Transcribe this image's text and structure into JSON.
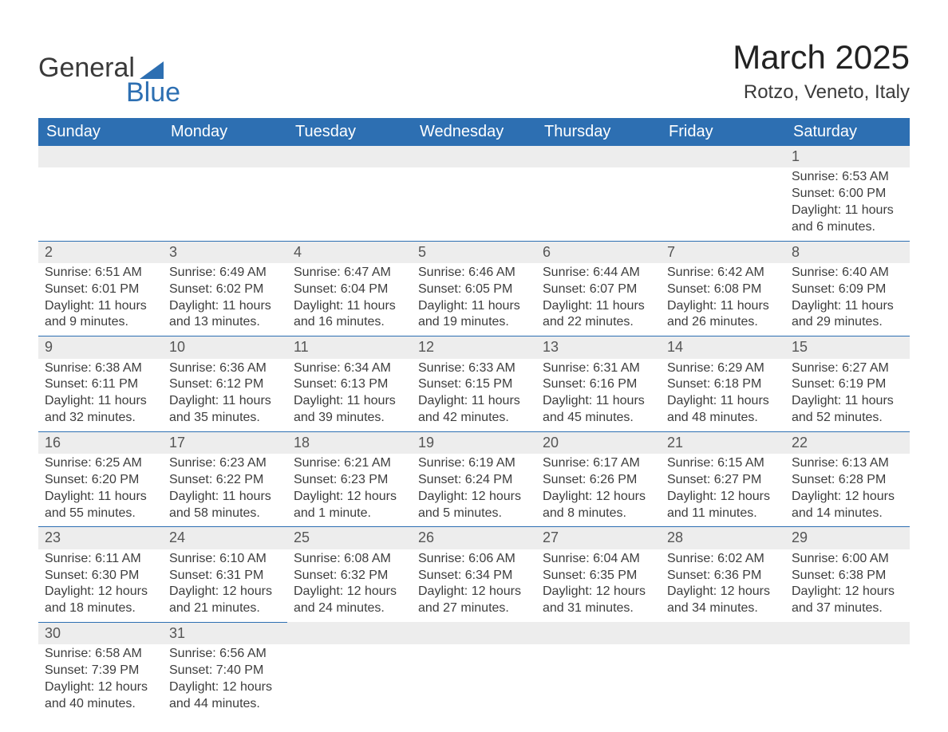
{
  "logo": {
    "line1": "General",
    "line2": "Blue",
    "brand_color": "#2d6fb2",
    "text_color": "#3a3a3a"
  },
  "title": "March 2025",
  "location": "Rotzo, Veneto, Italy",
  "colors": {
    "header_bg": "#2d6fb2",
    "header_text": "#ffffff",
    "daynum_bg": "#ededed",
    "body_text": "#3a3a3a",
    "background": "#ffffff"
  },
  "fonts": {
    "title_size": 42,
    "location_size": 24,
    "weekday_size": 20,
    "daynum_size": 18,
    "detail_size": 16
  },
  "weekdays": [
    "Sunday",
    "Monday",
    "Tuesday",
    "Wednesday",
    "Thursday",
    "Friday",
    "Saturday"
  ],
  "labels": {
    "sunrise": "Sunrise:",
    "sunset": "Sunset:",
    "daylight": "Daylight:"
  },
  "grid": {
    "leading_blanks": 6,
    "trailing_blanks": 5
  },
  "days": [
    {
      "n": 1,
      "sunrise": "6:53 AM",
      "sunset": "6:00 PM",
      "daylight": "11 hours and 6 minutes."
    },
    {
      "n": 2,
      "sunrise": "6:51 AM",
      "sunset": "6:01 PM",
      "daylight": "11 hours and 9 minutes."
    },
    {
      "n": 3,
      "sunrise": "6:49 AM",
      "sunset": "6:02 PM",
      "daylight": "11 hours and 13 minutes."
    },
    {
      "n": 4,
      "sunrise": "6:47 AM",
      "sunset": "6:04 PM",
      "daylight": "11 hours and 16 minutes."
    },
    {
      "n": 5,
      "sunrise": "6:46 AM",
      "sunset": "6:05 PM",
      "daylight": "11 hours and 19 minutes."
    },
    {
      "n": 6,
      "sunrise": "6:44 AM",
      "sunset": "6:07 PM",
      "daylight": "11 hours and 22 minutes."
    },
    {
      "n": 7,
      "sunrise": "6:42 AM",
      "sunset": "6:08 PM",
      "daylight": "11 hours and 26 minutes."
    },
    {
      "n": 8,
      "sunrise": "6:40 AM",
      "sunset": "6:09 PM",
      "daylight": "11 hours and 29 minutes."
    },
    {
      "n": 9,
      "sunrise": "6:38 AM",
      "sunset": "6:11 PM",
      "daylight": "11 hours and 32 minutes."
    },
    {
      "n": 10,
      "sunrise": "6:36 AM",
      "sunset": "6:12 PM",
      "daylight": "11 hours and 35 minutes."
    },
    {
      "n": 11,
      "sunrise": "6:34 AM",
      "sunset": "6:13 PM",
      "daylight": "11 hours and 39 minutes."
    },
    {
      "n": 12,
      "sunrise": "6:33 AM",
      "sunset": "6:15 PM",
      "daylight": "11 hours and 42 minutes."
    },
    {
      "n": 13,
      "sunrise": "6:31 AM",
      "sunset": "6:16 PM",
      "daylight": "11 hours and 45 minutes."
    },
    {
      "n": 14,
      "sunrise": "6:29 AM",
      "sunset": "6:18 PM",
      "daylight": "11 hours and 48 minutes."
    },
    {
      "n": 15,
      "sunrise": "6:27 AM",
      "sunset": "6:19 PM",
      "daylight": "11 hours and 52 minutes."
    },
    {
      "n": 16,
      "sunrise": "6:25 AM",
      "sunset": "6:20 PM",
      "daylight": "11 hours and 55 minutes."
    },
    {
      "n": 17,
      "sunrise": "6:23 AM",
      "sunset": "6:22 PM",
      "daylight": "11 hours and 58 minutes."
    },
    {
      "n": 18,
      "sunrise": "6:21 AM",
      "sunset": "6:23 PM",
      "daylight": "12 hours and 1 minute."
    },
    {
      "n": 19,
      "sunrise": "6:19 AM",
      "sunset": "6:24 PM",
      "daylight": "12 hours and 5 minutes."
    },
    {
      "n": 20,
      "sunrise": "6:17 AM",
      "sunset": "6:26 PM",
      "daylight": "12 hours and 8 minutes."
    },
    {
      "n": 21,
      "sunrise": "6:15 AM",
      "sunset": "6:27 PM",
      "daylight": "12 hours and 11 minutes."
    },
    {
      "n": 22,
      "sunrise": "6:13 AM",
      "sunset": "6:28 PM",
      "daylight": "12 hours and 14 minutes."
    },
    {
      "n": 23,
      "sunrise": "6:11 AM",
      "sunset": "6:30 PM",
      "daylight": "12 hours and 18 minutes."
    },
    {
      "n": 24,
      "sunrise": "6:10 AM",
      "sunset": "6:31 PM",
      "daylight": "12 hours and 21 minutes."
    },
    {
      "n": 25,
      "sunrise": "6:08 AM",
      "sunset": "6:32 PM",
      "daylight": "12 hours and 24 minutes."
    },
    {
      "n": 26,
      "sunrise": "6:06 AM",
      "sunset": "6:34 PM",
      "daylight": "12 hours and 27 minutes."
    },
    {
      "n": 27,
      "sunrise": "6:04 AM",
      "sunset": "6:35 PM",
      "daylight": "12 hours and 31 minutes."
    },
    {
      "n": 28,
      "sunrise": "6:02 AM",
      "sunset": "6:36 PM",
      "daylight": "12 hours and 34 minutes."
    },
    {
      "n": 29,
      "sunrise": "6:00 AM",
      "sunset": "6:38 PM",
      "daylight": "12 hours and 37 minutes."
    },
    {
      "n": 30,
      "sunrise": "6:58 AM",
      "sunset": "7:39 PM",
      "daylight": "12 hours and 40 minutes."
    },
    {
      "n": 31,
      "sunrise": "6:56 AM",
      "sunset": "7:40 PM",
      "daylight": "12 hours and 44 minutes."
    }
  ]
}
